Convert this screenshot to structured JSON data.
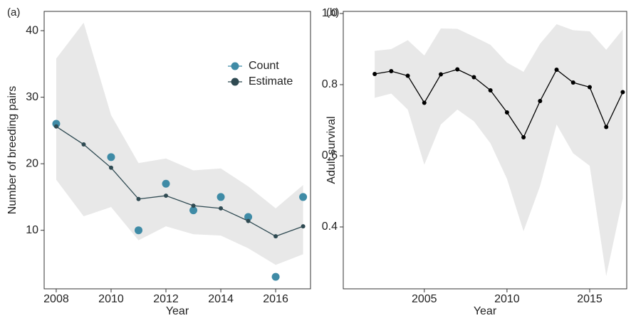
{
  "chart_data": [
    {
      "type": "line",
      "label": "(a)",
      "xlabel": "Year",
      "ylabel": "Number of breeding pairs",
      "x": [
        2008,
        2009,
        2010,
        2011,
        2012,
        2013,
        2014,
        2015,
        2016,
        2017
      ],
      "series": [
        {
          "name": "Count",
          "type": "scatter",
          "color": "#3f8ba6",
          "values": [
            26,
            null,
            21,
            10,
            17,
            13,
            15,
            12,
            3,
            15
          ]
        },
        {
          "name": "Estimate",
          "type": "line",
          "color": "#2f4a52",
          "values": [
            25.6,
            22.9,
            19.4,
            14.7,
            15.2,
            13.7,
            13.3,
            11.4,
            9.1,
            10.6
          ]
        }
      ],
      "band_upper": [
        35.8,
        41.2,
        27.3,
        20.1,
        20.8,
        19.0,
        19.3,
        16.6,
        13.3,
        16.8
      ],
      "band_lower": [
        17.6,
        12.1,
        13.5,
        8.5,
        10.6,
        9.4,
        9.2,
        7.3,
        4.8,
        6.4
      ],
      "band_color": "#e8e8e8",
      "xlim": [
        2007.56,
        2017.27
      ],
      "ylim": [
        1.2,
        42.9
      ],
      "xticks": [
        2008,
        2010,
        2012,
        2014,
        2016
      ],
      "yticks": [
        10,
        20,
        30,
        40
      ],
      "legend": "upper right"
    },
    {
      "type": "line",
      "label": "(b)",
      "xlabel": "Year",
      "ylabel": "Adult survival",
      "x": [
        2002,
        2003,
        2004,
        2005,
        2006,
        2007,
        2008,
        2009,
        2010,
        2011,
        2012,
        2013,
        2014,
        2015,
        2016,
        2017
      ],
      "series": [
        {
          "type": "line",
          "color": "#000000",
          "values": [
            0.83,
            0.838,
            0.825,
            0.749,
            0.829,
            0.843,
            0.821,
            0.784,
            0.722,
            0.652,
            0.754,
            0.842,
            0.806,
            0.793,
            0.681,
            0.779
          ]
        }
      ],
      "band_upper": [
        0.895,
        0.9,
        0.925,
        0.882,
        0.958,
        0.957,
        0.935,
        0.912,
        0.862,
        0.836,
        0.915,
        0.97,
        0.953,
        0.95,
        0.898,
        0.955
      ],
      "band_lower": [
        0.763,
        0.775,
        0.73,
        0.575,
        0.688,
        0.73,
        0.697,
        0.635,
        0.535,
        0.388,
        0.515,
        0.688,
        0.607,
        0.572,
        0.262,
        0.48
      ],
      "band_color": "#e8e8e8",
      "xlim": [
        2000.1,
        2017.24
      ],
      "ylim": [
        0.226,
        1.006
      ],
      "xticks": [
        2005,
        2010,
        2015
      ],
      "yticks": [
        0.4,
        0.6,
        0.8,
        {
          "value": 1.0,
          "label": "1.0"
        }
      ]
    }
  ]
}
